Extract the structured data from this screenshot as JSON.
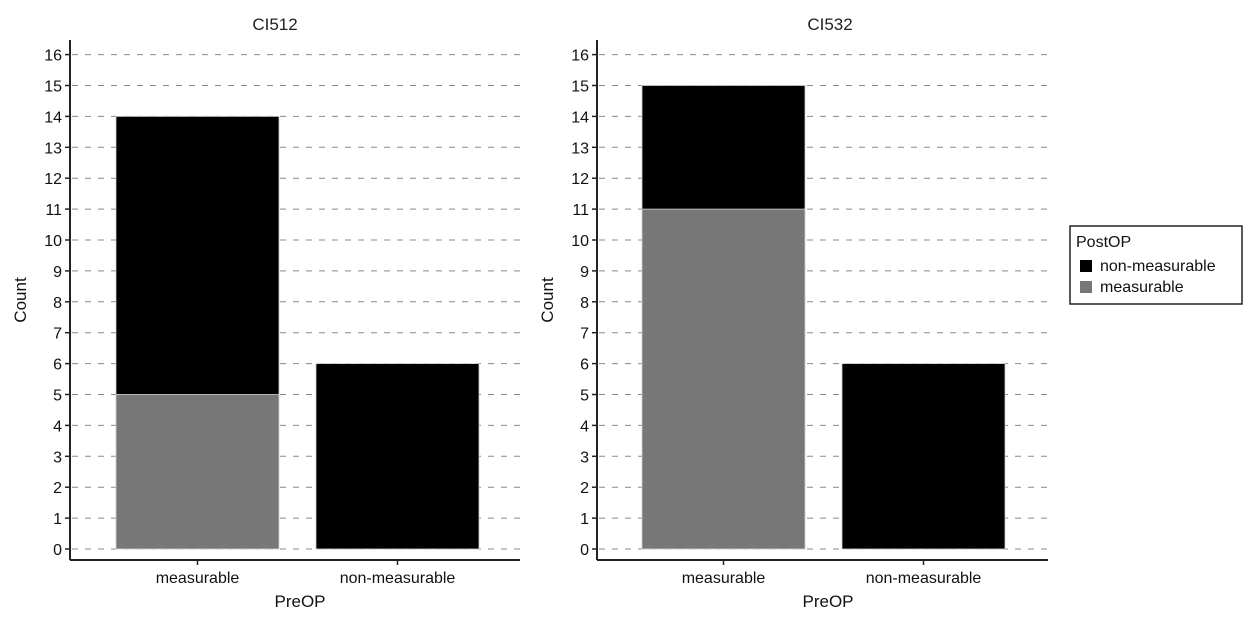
{
  "chart_data": [
    {
      "type": "bar",
      "stacked": true,
      "title": "CI512",
      "xlabel": "PreOP",
      "ylabel": "Count",
      "categories": [
        "measurable",
        "non-measurable"
      ],
      "series": [
        {
          "name": "measurable",
          "color": "#777777",
          "values": [
            5,
            0
          ]
        },
        {
          "name": "non-measurable",
          "color": "#000000",
          "values": [
            9,
            6
          ]
        }
      ],
      "ylim": [
        0,
        16
      ],
      "yticks": [
        "0",
        "1",
        "2",
        "3",
        "4",
        "5",
        "6",
        "7",
        "8",
        "9",
        "10",
        "11",
        "12",
        "13",
        "14",
        "15",
        "16"
      ],
      "grid": true
    },
    {
      "type": "bar",
      "stacked": true,
      "title": "CI532",
      "xlabel": "PreOP",
      "ylabel": "Count",
      "categories": [
        "measurable",
        "non-measurable"
      ],
      "series": [
        {
          "name": "measurable",
          "color": "#777777",
          "values": [
            11,
            0
          ]
        },
        {
          "name": "non-measurable",
          "color": "#000000",
          "values": [
            4,
            6
          ]
        }
      ],
      "ylim": [
        0,
        16
      ],
      "yticks": [
        "0",
        "1",
        "2",
        "3",
        "4",
        "5",
        "6",
        "7",
        "8",
        "9",
        "10",
        "11",
        "12",
        "13",
        "14",
        "15",
        "16"
      ],
      "grid": true
    }
  ],
  "legend": {
    "title": "PostOP",
    "placement": "right",
    "items": [
      {
        "label": "non-measurable",
        "color": "#000000"
      },
      {
        "label": "measurable",
        "color": "#777777"
      }
    ]
  }
}
